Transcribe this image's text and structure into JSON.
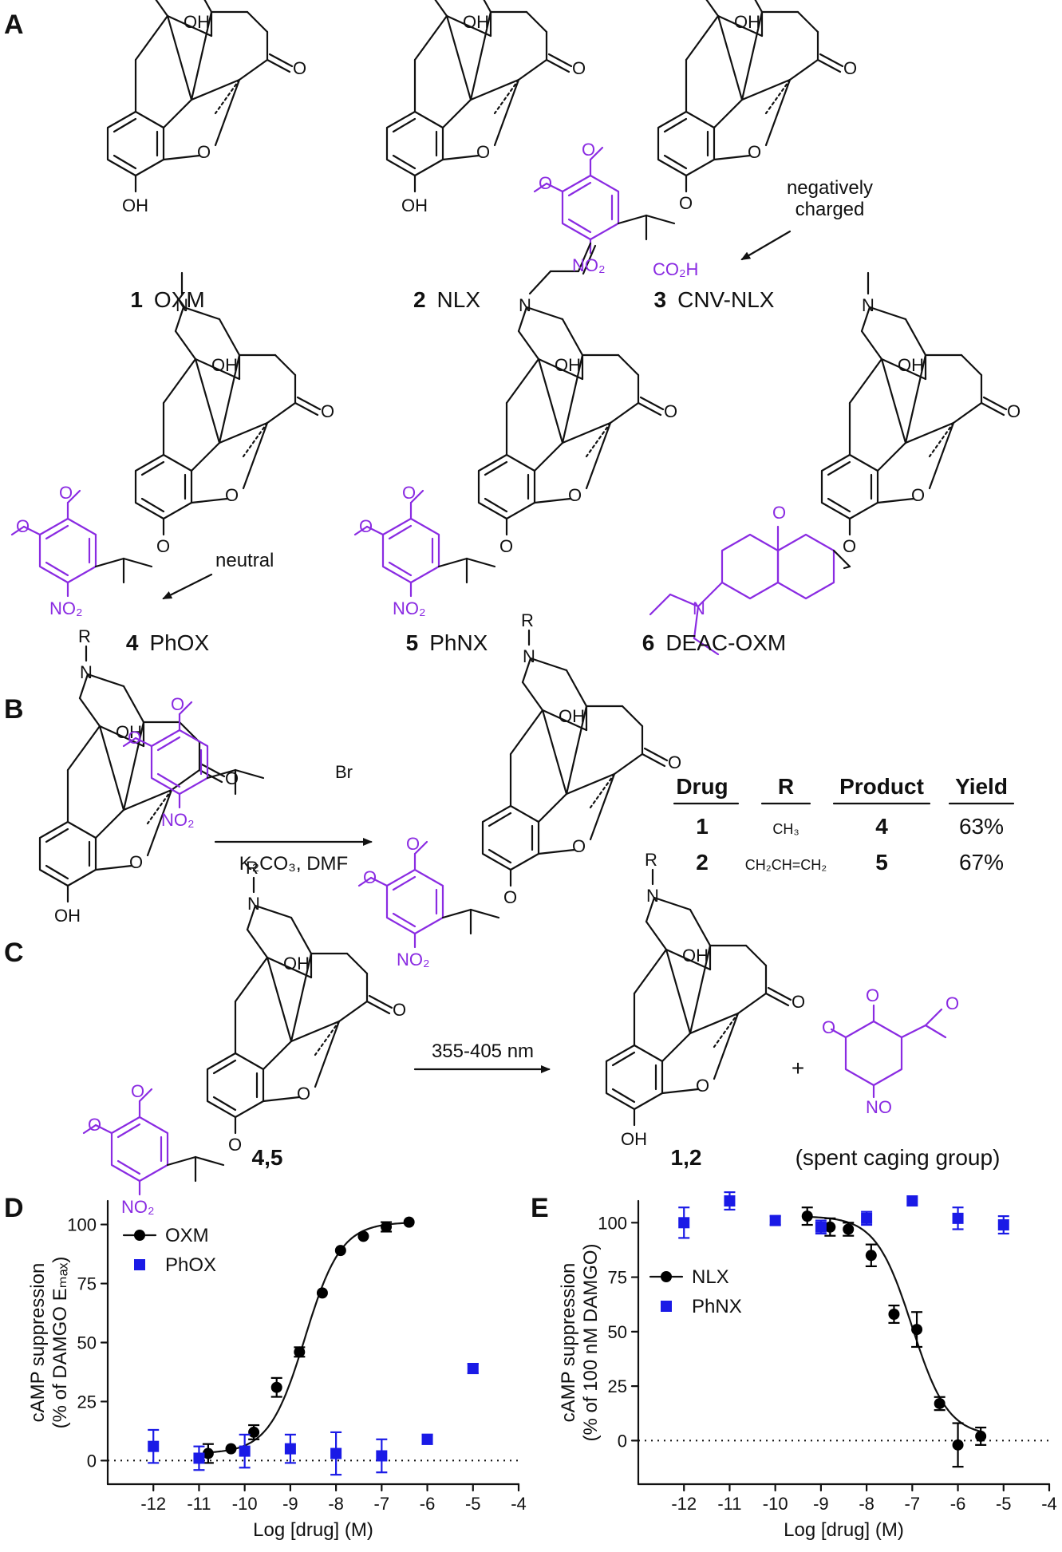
{
  "panels": {
    "a": "A",
    "b": "B",
    "c": "C",
    "d": "D",
    "e": "E"
  },
  "compounds": [
    {
      "num": "1",
      "name": "OXM"
    },
    {
      "num": "2",
      "name": "NLX"
    },
    {
      "num": "3",
      "name": "CNV-NLX"
    },
    {
      "num": "4",
      "name": "PhOX"
    },
    {
      "num": "5",
      "name": "PhNX"
    },
    {
      "num": "6",
      "name": "DEAC-OXM"
    }
  ],
  "notes": {
    "negatively": "negatively",
    "charged": "charged",
    "neutral": "neutral"
  },
  "atoms": {
    "oh": "OH",
    "o": "O",
    "n": "N",
    "r": "R",
    "br": "Br",
    "no2": "NO₂",
    "no": "NO",
    "co2h": "CO₂H"
  },
  "scheme_b": {
    "reagent": "K₂CO₃, DMF",
    "headers": [
      "Drug",
      "R",
      "Product",
      "Yield"
    ],
    "rows": [
      {
        "drug": "1",
        "r": "CH₃",
        "product": "4",
        "yield": "63%"
      },
      {
        "drug": "2",
        "r": "CH₂CH=CH₂",
        "product": "5",
        "yield": "67%"
      }
    ]
  },
  "scheme_c": {
    "condition": "355-405 nm",
    "plus": "+",
    "reactant_label": "4,5",
    "product_label": "1,2",
    "spent": "(spent caging group)"
  },
  "chart_data": [
    {
      "panel": "D",
      "type": "scatter",
      "xlabel": "Log [drug] (M)",
      "ylabel": "cAMP suppression",
      "ylabel2": "(% of DAMGO Eₘₐₓ)",
      "xlim": [
        -13,
        -4
      ],
      "ylim": [
        -10,
        110
      ],
      "xticks": [
        -12,
        -11,
        -10,
        -9,
        -8,
        -7,
        -6,
        -5,
        -4
      ],
      "yticks": [
        0,
        25,
        50,
        75,
        100
      ],
      "legend_position": "top-left",
      "series": [
        {
          "name": "OXM",
          "marker": "circle",
          "color": "#000000",
          "x": [
            -10.8,
            -10.3,
            -9.8,
            -9.3,
            -8.8,
            -8.3,
            -7.9,
            -7.4,
            -6.9,
            -6.4
          ],
          "y": [
            3,
            5,
            12,
            31,
            46,
            71,
            89,
            95,
            99,
            101
          ],
          "err": [
            4,
            0,
            3,
            4,
            2,
            0,
            0,
            0,
            2,
            0
          ]
        },
        {
          "name": "PhOX",
          "marker": "square",
          "color": "#1a1ae6",
          "x": [
            -12,
            -11,
            -10,
            -9,
            -8,
            -7,
            -6,
            -5
          ],
          "y": [
            6,
            1,
            4,
            5,
            3,
            2,
            9,
            39
          ],
          "err": [
            7,
            5,
            7,
            6,
            9,
            7,
            2,
            2
          ]
        }
      ]
    },
    {
      "panel": "E",
      "type": "scatter",
      "xlabel": "Log [drug] (M)",
      "ylabel": "cAMP suppression",
      "ylabel2": "(% of 100 nM DAMGO)",
      "xlim": [
        -13,
        -4
      ],
      "ylim": [
        -20,
        110
      ],
      "xticks": [
        -12,
        -11,
        -10,
        -9,
        -8,
        -7,
        -6,
        -5,
        -4
      ],
      "yticks": [
        0,
        25,
        50,
        75,
        100
      ],
      "legend_position": "left",
      "series": [
        {
          "name": "NLX",
          "marker": "circle",
          "color": "#000000",
          "x": [
            -9.3,
            -8.8,
            -8.4,
            -7.9,
            -7.4,
            -6.9,
            -6.4,
            -6.0,
            -5.5
          ],
          "y": [
            103,
            98,
            97,
            85,
            58,
            51,
            17,
            -2,
            2
          ],
          "err": [
            4,
            4,
            3,
            5,
            4,
            8,
            3,
            10,
            4
          ]
        },
        {
          "name": "PhNX",
          "marker": "square",
          "color": "#1a1ae6",
          "x": [
            -12,
            -11,
            -10,
            -9,
            -8,
            -7,
            -6,
            -5
          ],
          "y": [
            100,
            110,
            101,
            98,
            102,
            110,
            102,
            99
          ],
          "err": [
            7,
            4,
            2,
            3,
            3,
            0,
            5,
            4
          ]
        }
      ]
    }
  ]
}
